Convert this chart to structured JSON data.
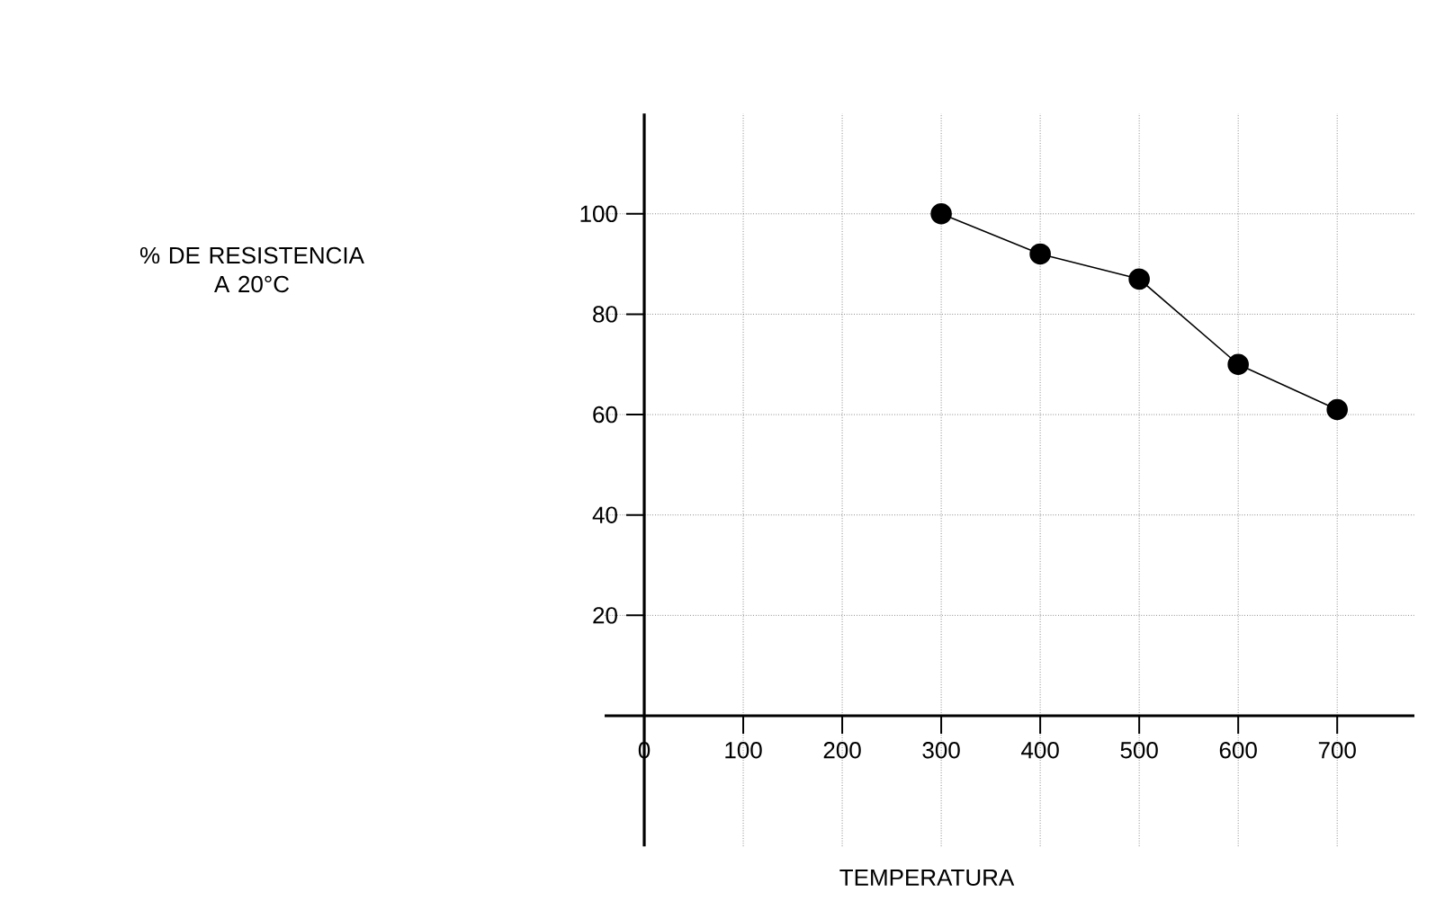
{
  "chart_data": {
    "type": "line",
    "xlabel": "TEMPERATURA",
    "annotations": [
      "% DE RESISTENCIA A 20°C"
    ],
    "x": [
      300,
      400,
      500,
      600,
      700
    ],
    "series": [
      {
        "color": "#000000",
        "values": [
          100,
          92,
          87,
          70,
          61
        ]
      }
    ],
    "xlim": [
      -40,
      778
    ],
    "ylim": [
      -26,
      120
    ],
    "xticks": [
      0,
      100,
      200,
      300,
      400,
      500,
      600,
      700
    ],
    "yticks": [
      20,
      40,
      60,
      80,
      100
    ],
    "grid": true,
    "marker": "circle",
    "line_style": "solid"
  }
}
